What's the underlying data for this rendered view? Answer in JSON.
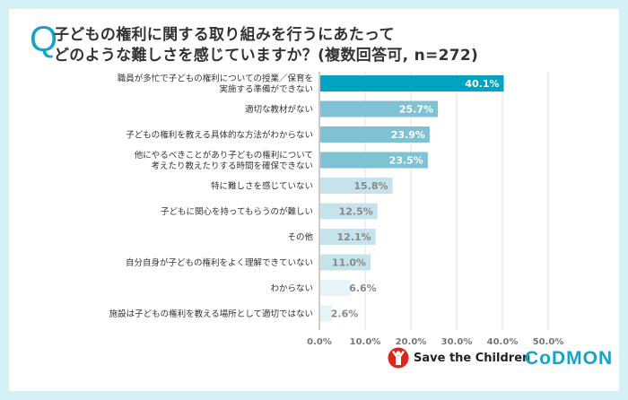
{
  "header": {
    "q_mark": "Q",
    "title_line1": "子どもの権利に関する取り組みを行うにあたって",
    "title_line2": "どのような難しさを感じていますか？(複数回答可, n=272)"
  },
  "chart_data": {
    "type": "bar",
    "orientation": "horizontal",
    "categories": [
      "職員が多忙で子どもの権利についての授業／保育を|実施する準備ができない",
      "適切な教材がない",
      "子どもの権利を教える具体的な方法がわからない",
      "他にやるべきことがあり子どもの権利について|考えたり教えたりする時間を確保できない",
      "特に難しさを感じていない",
      "子どもに関心を持ってもらうのが難しい",
      "その他",
      "自分自身が子どもの権利をよく理解できていない",
      "わからない",
      "施設は子どもの権利を教える場所として適切ではない"
    ],
    "values": [
      40.1,
      25.7,
      23.9,
      23.5,
      15.8,
      12.5,
      12.1,
      11.0,
      6.6,
      2.6
    ],
    "value_labels": [
      "40.1%",
      "25.7%",
      "23.9%",
      "23.5%",
      "15.8%",
      "12.5%",
      "12.1%",
      "11.0%",
      "6.6%",
      "2.6%"
    ],
    "xlim": [
      0,
      50
    ],
    "ticks": [
      "0.0%",
      "10.0%",
      "20.0%",
      "30.0%",
      "40.0%",
      "50.0%"
    ],
    "grid": true,
    "colors": {
      "top": "#00a3c2",
      "high": "#7fc2d3",
      "mid": "#c6e3ec",
      "low": "#e6f3f7"
    }
  },
  "logos": {
    "save_the_children": "Save the Children",
    "codmon": "CoDMON"
  }
}
